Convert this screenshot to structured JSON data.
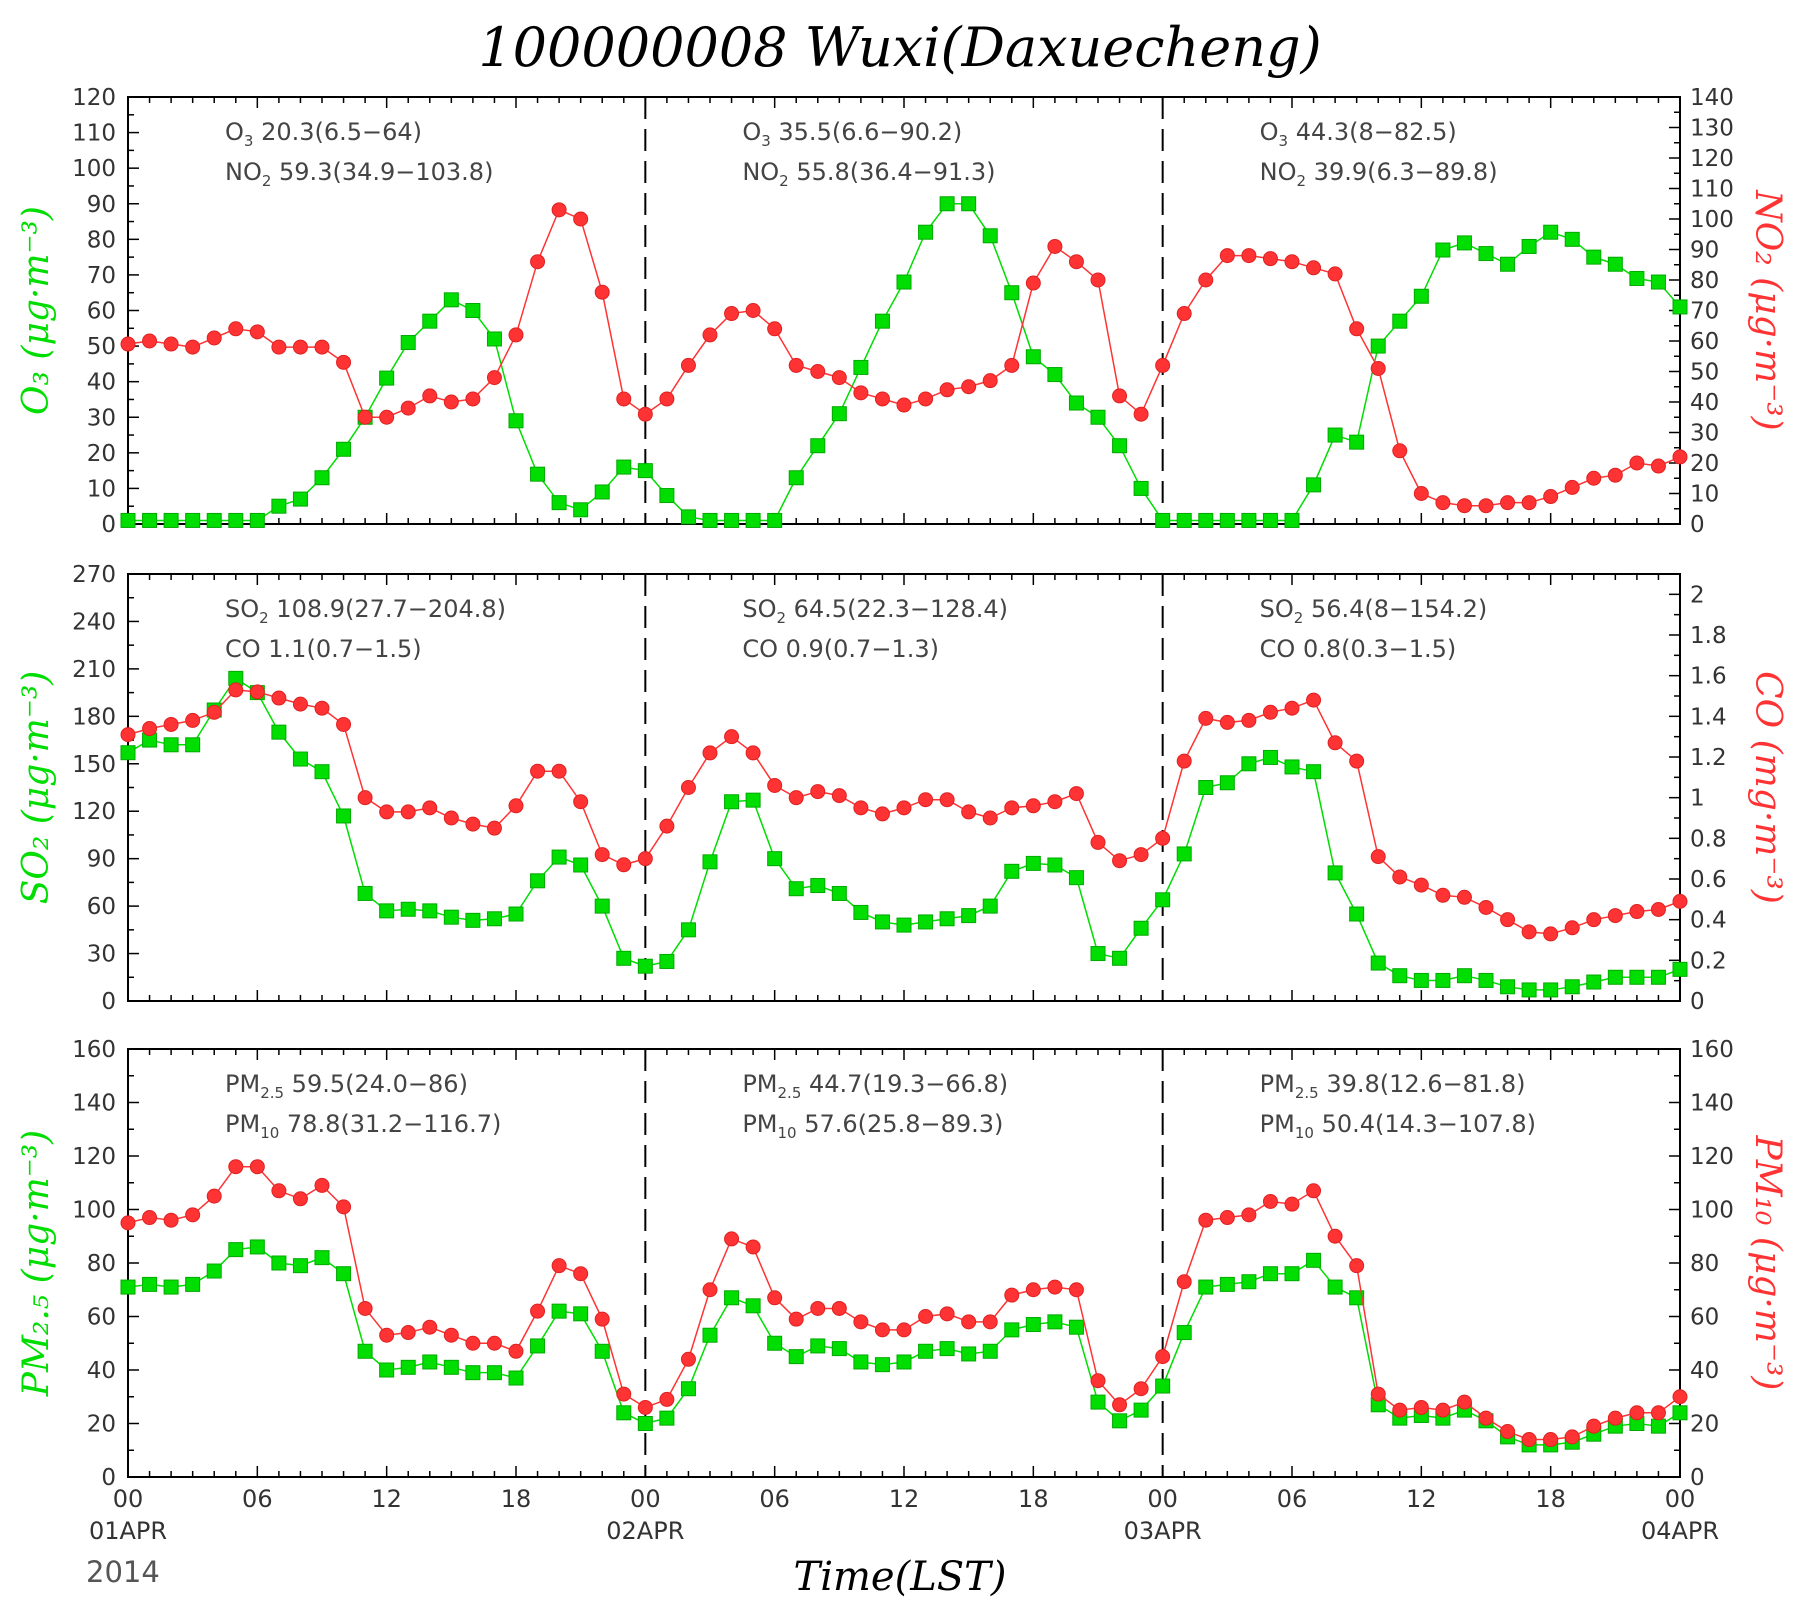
{
  "title": "100000008 Wuxi(Daxuecheng)",
  "xlabel": "Time(LST)",
  "year": "2014",
  "colors": {
    "primary": "#00dd00",
    "secondary": "#ff3333",
    "edge_primary": "#00aa00",
    "edge_secondary": "#dd2222"
  },
  "x_ticks": [
    {
      "h": 0,
      "label": "00",
      "date": "01APR"
    },
    {
      "h": 6,
      "label": "06",
      "date": ""
    },
    {
      "h": 12,
      "label": "12",
      "date": ""
    },
    {
      "h": 18,
      "label": "18",
      "date": ""
    },
    {
      "h": 24,
      "label": "00",
      "date": "02APR"
    },
    {
      "h": 30,
      "label": "06",
      "date": ""
    },
    {
      "h": 36,
      "label": "12",
      "date": ""
    },
    {
      "h": 42,
      "label": "18",
      "date": ""
    },
    {
      "h": 48,
      "label": "00",
      "date": "03APR"
    },
    {
      "h": 54,
      "label": "06",
      "date": ""
    },
    {
      "h": 60,
      "label": "12",
      "date": ""
    },
    {
      "h": 66,
      "label": "18",
      "date": ""
    },
    {
      "h": 72,
      "label": "00",
      "date": "04APR"
    }
  ],
  "chart_data": [
    {
      "type": "line",
      "x_range": [
        0,
        72
      ],
      "day_dividers": [
        24,
        48
      ],
      "left_axis": {
        "ylim": [
          0,
          120
        ],
        "ticks": [
          0,
          10,
          20,
          30,
          40,
          50,
          60,
          70,
          80,
          90,
          100,
          110,
          120
        ],
        "label": "O₃  (μg·m⁻³)"
      },
      "right_axis": {
        "ylim": [
          0,
          140
        ],
        "ticks": [
          0,
          10,
          20,
          30,
          40,
          50,
          60,
          70,
          80,
          90,
          100,
          110,
          120,
          130,
          140
        ],
        "label": "NO₂ (μg·m⁻³)"
      },
      "series": [
        {
          "name": "O3",
          "axis": "left",
          "marker": "square",
          "values": [
            1,
            1,
            1,
            1,
            1,
            1,
            1,
            5,
            7,
            13,
            21,
            30,
            41,
            51,
            57,
            63,
            60,
            52,
            29,
            14,
            6,
            4,
            9,
            16,
            15,
            8,
            2,
            1,
            1,
            1,
            1,
            13,
            22,
            31,
            44,
            57,
            68,
            82,
            90,
            90,
            81,
            65,
            47,
            42,
            34,
            30,
            22,
            10,
            1,
            1,
            1,
            1,
            1,
            1,
            1,
            11,
            25,
            23,
            50,
            57,
            64,
            77,
            79,
            76,
            73,
            78,
            82,
            80,
            75,
            73,
            69,
            68,
            61
          ]
        },
        {
          "name": "NO2",
          "axis": "right",
          "marker": "circle",
          "values": [
            59,
            60,
            59,
            58,
            61,
            64,
            63,
            58,
            58,
            58,
            53,
            35,
            35,
            38,
            42,
            40,
            41,
            48,
            62,
            86,
            103,
            100,
            76,
            41,
            36,
            41,
            52,
            62,
            69,
            70,
            64,
            52,
            50,
            48,
            43,
            41,
            39,
            41,
            44,
            45,
            47,
            52,
            79,
            91,
            86,
            80,
            42,
            36,
            52,
            69,
            80,
            88,
            88,
            87,
            86,
            84,
            82,
            64,
            51,
            24,
            10,
            7,
            6,
            6,
            7,
            7,
            9,
            12,
            15,
            16,
            20,
            19,
            22
          ]
        }
      ],
      "annotations": [
        {
          "day": 0,
          "lines": [
            {
              "sp": "O",
              "sub": "3",
              "text": " 20.3(6.5−64)"
            },
            {
              "sp": "NO",
              "sub": "2",
              "text": " 59.3(34.9−103.8)"
            }
          ]
        },
        {
          "day": 1,
          "lines": [
            {
              "sp": "O",
              "sub": "3",
              "text": " 35.5(6.6−90.2)"
            },
            {
              "sp": "NO",
              "sub": "2",
              "text": " 55.8(36.4−91.3)"
            }
          ]
        },
        {
          "day": 2,
          "lines": [
            {
              "sp": "O",
              "sub": "3",
              "text": " 44.3(8−82.5)"
            },
            {
              "sp": "NO",
              "sub": "2",
              "text": " 39.9(6.3−89.8)"
            }
          ]
        }
      ]
    },
    {
      "type": "line",
      "x_range": [
        0,
        72
      ],
      "day_dividers": [
        24,
        48
      ],
      "left_axis": {
        "ylim": [
          0,
          270
        ],
        "ticks": [
          0,
          30,
          60,
          90,
          120,
          150,
          180,
          210,
          240,
          270
        ],
        "label": "SO₂  (μg·m⁻³)"
      },
      "right_axis": {
        "ylim": [
          0,
          2.1
        ],
        "ticks": [
          0,
          0.2,
          0.4,
          0.6,
          0.8,
          1,
          1.2,
          1.4,
          1.6,
          1.8,
          2
        ],
        "label": "CO  (mg·m⁻³)"
      },
      "series": [
        {
          "name": "SO2",
          "axis": "left",
          "marker": "square",
          "values": [
            157,
            165,
            162,
            162,
            184,
            204,
            195,
            170,
            153,
            145,
            117,
            68,
            57,
            58,
            57,
            53,
            51,
            52,
            55,
            76,
            91,
            86,
            60,
            27,
            22,
            25,
            45,
            88,
            126,
            127,
            90,
            71,
            73,
            68,
            56,
            50,
            48,
            50,
            52,
            54,
            60,
            82,
            87,
            86,
            78,
            30,
            27,
            46,
            64,
            93,
            135,
            138,
            150,
            154,
            148,
            145,
            81,
            55,
            24,
            16,
            13,
            13,
            16,
            13,
            9,
            7,
            7,
            9,
            12,
            15,
            15,
            15,
            20
          ]
        },
        {
          "name": "CO",
          "axis": "right",
          "marker": "circle",
          "values": [
            1.31,
            1.34,
            1.36,
            1.38,
            1.42,
            1.53,
            1.52,
            1.49,
            1.46,
            1.44,
            1.36,
            1.0,
            0.93,
            0.93,
            0.95,
            0.9,
            0.87,
            0.85,
            0.96,
            1.13,
            1.13,
            0.98,
            0.72,
            0.67,
            0.7,
            0.86,
            1.05,
            1.22,
            1.3,
            1.22,
            1.06,
            1.0,
            1.03,
            1.01,
            0.95,
            0.92,
            0.95,
            0.99,
            0.99,
            0.93,
            0.9,
            0.95,
            0.96,
            0.98,
            1.02,
            0.78,
            0.69,
            0.72,
            0.8,
            1.18,
            1.39,
            1.37,
            1.38,
            1.42,
            1.44,
            1.48,
            1.27,
            1.18,
            0.71,
            0.61,
            0.57,
            0.52,
            0.51,
            0.46,
            0.4,
            0.34,
            0.33,
            0.36,
            0.4,
            0.42,
            0.44,
            0.45,
            0.49
          ]
        }
      ],
      "annotations": [
        {
          "day": 0,
          "lines": [
            {
              "sp": "SO",
              "sub": "2",
              "text": " 108.9(27.7−204.8)"
            },
            {
              "sp": "CO",
              "sub": "",
              "text": " 1.1(0.7−1.5)"
            }
          ]
        },
        {
          "day": 1,
          "lines": [
            {
              "sp": "SO",
              "sub": "2",
              "text": " 64.5(22.3−128.4)"
            },
            {
              "sp": "CO",
              "sub": "",
              "text": " 0.9(0.7−1.3)"
            }
          ]
        },
        {
          "day": 2,
          "lines": [
            {
              "sp": "SO",
              "sub": "2",
              "text": " 56.4(8−154.2)"
            },
            {
              "sp": "CO",
              "sub": "",
              "text": " 0.8(0.3−1.5)"
            }
          ]
        }
      ]
    },
    {
      "type": "line",
      "x_range": [
        0,
        72
      ],
      "day_dividers": [
        24,
        48
      ],
      "left_axis": {
        "ylim": [
          0,
          160
        ],
        "ticks": [
          0,
          20,
          40,
          60,
          80,
          100,
          120,
          140,
          160
        ],
        "label": "PM₂.₅  (μg·m⁻³)"
      },
      "right_axis": {
        "ylim": [
          0,
          160
        ],
        "ticks": [
          0,
          20,
          40,
          60,
          80,
          100,
          120,
          140,
          160
        ],
        "label": "PM₁₀  (μg·m⁻³)"
      },
      "series": [
        {
          "name": "PM2.5",
          "axis": "left",
          "marker": "square",
          "values": [
            71,
            72,
            71,
            72,
            77,
            85,
            86,
            80,
            79,
            82,
            76,
            47,
            40,
            41,
            43,
            41,
            39,
            39,
            37,
            49,
            62,
            61,
            47,
            24,
            20,
            22,
            33,
            53,
            67,
            64,
            50,
            45,
            49,
            48,
            43,
            42,
            43,
            47,
            48,
            46,
            47,
            55,
            57,
            58,
            56,
            28,
            21,
            25,
            34,
            54,
            71,
            72,
            73,
            76,
            76,
            81,
            71,
            67,
            27,
            22,
            23,
            22,
            25,
            21,
            15,
            12,
            12,
            13,
            16,
            19,
            20,
            19,
            24
          ]
        },
        {
          "name": "PM10",
          "axis": "right",
          "marker": "circle",
          "values": [
            95,
            97,
            96,
            98,
            105,
            116,
            116,
            107,
            104,
            109,
            101,
            63,
            53,
            54,
            56,
            53,
            50,
            50,
            47,
            62,
            79,
            76,
            59,
            31,
            26,
            29,
            44,
            70,
            89,
            86,
            67,
            59,
            63,
            63,
            58,
            55,
            55,
            60,
            61,
            58,
            58,
            68,
            70,
            71,
            70,
            36,
            27,
            33,
            45,
            73,
            96,
            97,
            98,
            103,
            102,
            107,
            90,
            79,
            31,
            25,
            26,
            25,
            28,
            22,
            17,
            14,
            14,
            15,
            19,
            22,
            24,
            24,
            30
          ]
        }
      ],
      "annotations": [
        {
          "day": 0,
          "lines": [
            {
              "sp": "PM",
              "sub": "2.5",
              "text": " 59.5(24.0−86)"
            },
            {
              "sp": "PM",
              "sub": "10",
              "text": " 78.8(31.2−116.7)"
            }
          ]
        },
        {
          "day": 1,
          "lines": [
            {
              "sp": "PM",
              "sub": "2.5",
              "text": " 44.7(19.3−66.8)"
            },
            {
              "sp": "PM",
              "sub": "10",
              "text": " 57.6(25.8−89.3)"
            }
          ]
        },
        {
          "day": 2,
          "lines": [
            {
              "sp": "PM",
              "sub": "2.5",
              "text": " 39.8(12.6−81.8)"
            },
            {
              "sp": "PM",
              "sub": "10",
              "text": " 50.4(14.3−107.8)"
            }
          ]
        }
      ]
    }
  ]
}
